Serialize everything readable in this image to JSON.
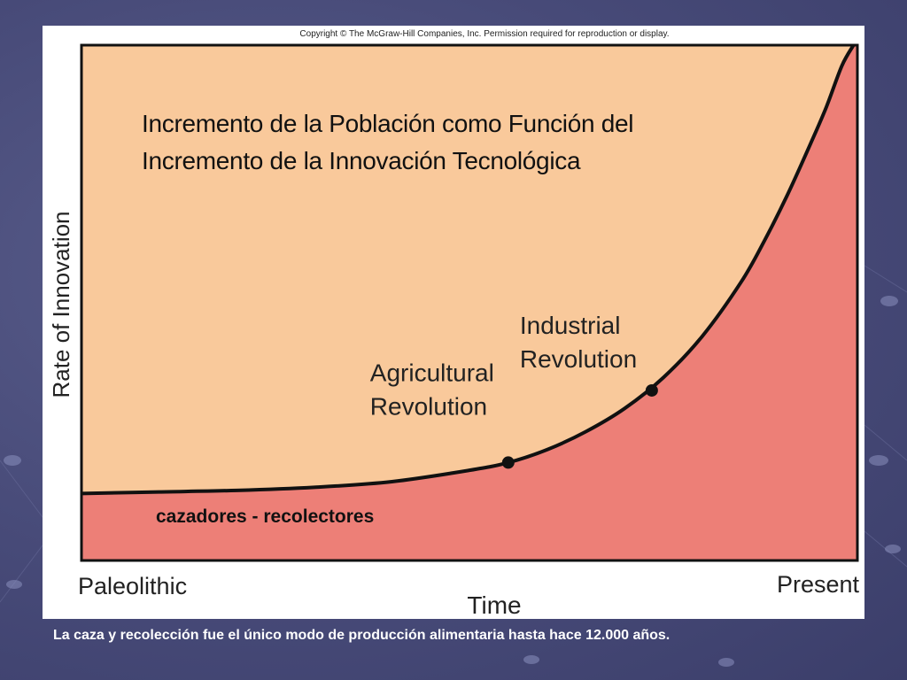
{
  "copyright": "Copyright © The McGraw-Hill Companies, Inc.  Permission required for reproduction or display.",
  "caption": "La caza y recolección fue el único modo de producción alimentaria hasta hace 12.000 años.",
  "colors": {
    "background": "#474a78",
    "upper_fill": "#f9c99b",
    "lower_fill": "#ed7f77",
    "curve": "#111111"
  },
  "chart_data": {
    "type": "area",
    "title_lines": [
      "Incremento de la Población como Función del",
      "Incremento de la Innovación Tecnológica"
    ],
    "xlabel": "Time",
    "ylabel": "Rate of Innovation",
    "x_tick_labels": [
      "Paleolithic",
      "Present"
    ],
    "region_label": "cazadores - recolectores",
    "xlim": [
      0,
      100
    ],
    "ylim": [
      0,
      100
    ],
    "series": [
      {
        "x": [
          0,
          10,
          20,
          30,
          40,
          50,
          55,
          60,
          65,
          70,
          75,
          80,
          85,
          88,
          91,
          94,
          96,
          98,
          99.5
        ],
        "y": [
          13,
          13.3,
          13.6,
          14.2,
          15.3,
          17.5,
          19,
          21.5,
          25,
          29.5,
          35.5,
          43.5,
          54,
          62,
          71,
          81,
          88,
          96,
          100
        ]
      }
    ],
    "annotations": [
      {
        "lines": [
          "Agricultural",
          "Revolution"
        ],
        "x": 55,
        "y": 19
      },
      {
        "lines": [
          "Industrial",
          "Revolution"
        ],
        "x": 73.5,
        "y": 33
      }
    ]
  }
}
